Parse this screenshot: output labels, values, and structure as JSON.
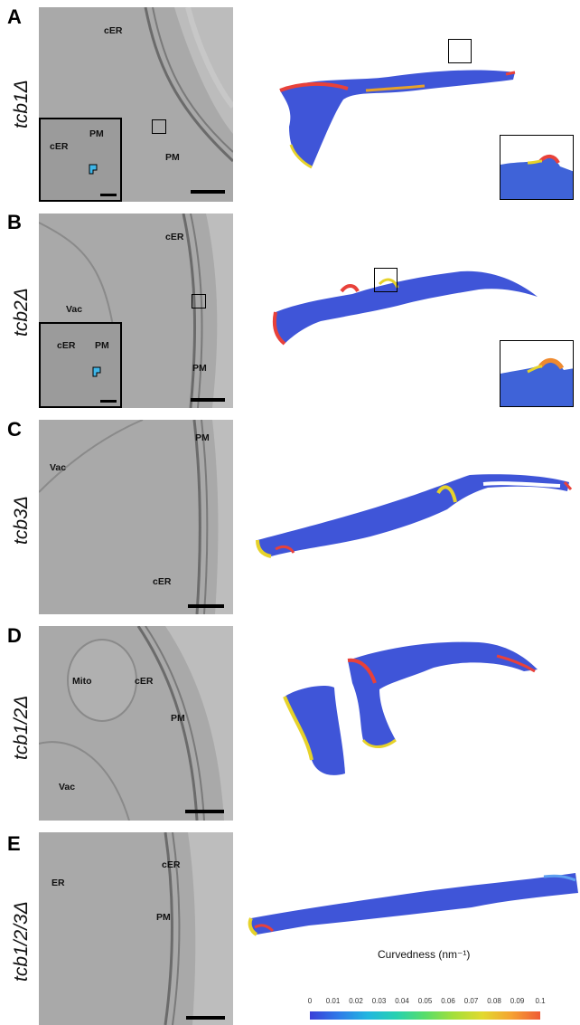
{
  "panels": [
    {
      "letter": "A",
      "genotype": "tcb1Δ",
      "labels": [
        "cER",
        "PM"
      ],
      "inset_labels": [
        "cER",
        "PM"
      ]
    },
    {
      "letter": "B",
      "genotype": "tcb2Δ",
      "labels": [
        "cER",
        "Vac",
        "PM"
      ],
      "inset_labels": [
        "cER",
        "PM"
      ]
    },
    {
      "letter": "C",
      "genotype": "tcb3Δ",
      "labels": [
        "PM",
        "Vac",
        "cER"
      ]
    },
    {
      "letter": "D",
      "genotype": "tcb1/2Δ",
      "labels": [
        "Mito",
        "cER",
        "PM",
        "Vac"
      ]
    },
    {
      "letter": "E",
      "genotype": "tcb1/2/3Δ",
      "labels": [
        "ER",
        "cER",
        "PM"
      ]
    }
  ],
  "colorbar": {
    "title": "Curvedness (nm⁻¹)",
    "ticks": [
      "0",
      "0.01",
      "0.02",
      "0.03",
      "0.04",
      "0.05",
      "0.06",
      "0.07",
      "0.08",
      "0.09",
      "0.1"
    ],
    "colors": [
      "#3a3fd8",
      "#2f7be8",
      "#22b6e0",
      "#27d1b0",
      "#58dd6a",
      "#a5df3a",
      "#e2d92f",
      "#f5a233",
      "#ef5b34"
    ]
  },
  "colors": {
    "surface": "#3f55d8",
    "edge_high": "#e8413a",
    "edge_mid": "#e6d22a"
  }
}
